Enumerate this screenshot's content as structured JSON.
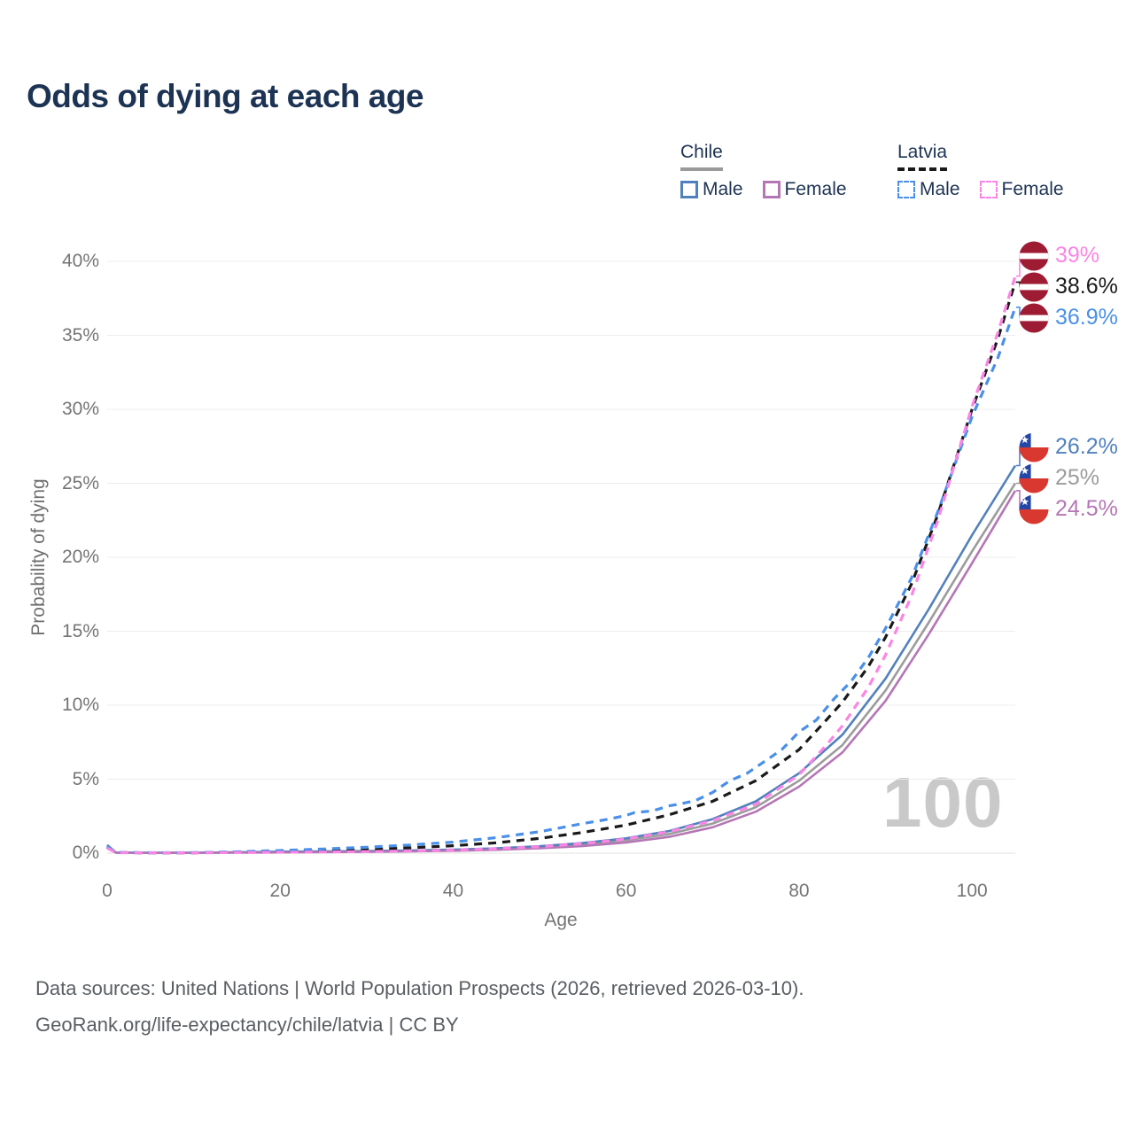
{
  "header": {
    "title": "Odds of dying at each age"
  },
  "legend": {
    "groups": [
      {
        "title": "Chile",
        "underline": "solid",
        "items": [
          {
            "label": "Male",
            "color": "#5181bc",
            "dash": false
          },
          {
            "label": "Female",
            "color": "#b576b6",
            "dash": false
          }
        ]
      },
      {
        "title": "Latvia",
        "underline": "dashed",
        "items": [
          {
            "label": "Male",
            "color": "#4a90e8",
            "dash": true
          },
          {
            "label": "Female",
            "color": "#fb85e4",
            "dash": true
          }
        ]
      }
    ]
  },
  "chart_data": {
    "type": "line",
    "title": "Odds of dying at each age",
    "xlabel": "Age",
    "ylabel": "Probability of dying",
    "xlim": [
      0,
      105
    ],
    "ylim": [
      0,
      40
    ],
    "x_ticks": [
      0,
      20,
      40,
      60,
      80,
      100
    ],
    "x_tick_labels": [
      "0",
      "20",
      "40",
      "60",
      "80",
      "100"
    ],
    "y_ticks": [
      0,
      5,
      10,
      15,
      20,
      25,
      30,
      35,
      40
    ],
    "y_tick_labels": [
      "0%",
      "5%",
      "10%",
      "15%",
      "20%",
      "25%",
      "30%",
      "35%",
      "40%"
    ],
    "grid": "horizontal",
    "legend_position": "top-right",
    "watermark": "100",
    "series": [
      {
        "id": "chile-total",
        "name": "Chile Total",
        "country": "Chile",
        "sex": "Total",
        "color": "#9c9c9c",
        "dash": false,
        "end_label": "25%",
        "points": [
          [
            0,
            0.5
          ],
          [
            1,
            0.035
          ],
          [
            5,
            0.02
          ],
          [
            10,
            0.02
          ],
          [
            15,
            0.05
          ],
          [
            20,
            0.08
          ],
          [
            25,
            0.1
          ],
          [
            30,
            0.12
          ],
          [
            35,
            0.15
          ],
          [
            40,
            0.2
          ],
          [
            45,
            0.28
          ],
          [
            50,
            0.4
          ],
          [
            55,
            0.58
          ],
          [
            60,
            0.87
          ],
          [
            65,
            1.3
          ],
          [
            70,
            2.0
          ],
          [
            75,
            3.1
          ],
          [
            80,
            4.9
          ],
          [
            85,
            7.3
          ],
          [
            90,
            11.0
          ],
          [
            95,
            15.6
          ],
          [
            100,
            20.4
          ],
          [
            105,
            25.0
          ]
        ]
      },
      {
        "id": "chile-male",
        "name": "Chile Male",
        "country": "Chile",
        "sex": "Male",
        "color": "#5181bc",
        "dash": false,
        "end_label": "26.2%",
        "points": [
          [
            0,
            0.55
          ],
          [
            1,
            0.04
          ],
          [
            5,
            0.025
          ],
          [
            10,
            0.025
          ],
          [
            15,
            0.06
          ],
          [
            20,
            0.1
          ],
          [
            25,
            0.12
          ],
          [
            30,
            0.14
          ],
          [
            35,
            0.18
          ],
          [
            40,
            0.24
          ],
          [
            45,
            0.33
          ],
          [
            50,
            0.47
          ],
          [
            55,
            0.68
          ],
          [
            60,
            1.0
          ],
          [
            65,
            1.5
          ],
          [
            70,
            2.3
          ],
          [
            75,
            3.5
          ],
          [
            80,
            5.4
          ],
          [
            85,
            8.0
          ],
          [
            90,
            11.8
          ],
          [
            95,
            16.5
          ],
          [
            100,
            21.5
          ],
          [
            105,
            26.2
          ]
        ]
      },
      {
        "id": "chile-female",
        "name": "Chile Female",
        "country": "Chile",
        "sex": "Female",
        "color": "#b576b6",
        "dash": false,
        "end_label": "24.5%",
        "points": [
          [
            0,
            0.45
          ],
          [
            1,
            0.03
          ],
          [
            5,
            0.015
          ],
          [
            10,
            0.015
          ],
          [
            15,
            0.035
          ],
          [
            20,
            0.05
          ],
          [
            25,
            0.07
          ],
          [
            30,
            0.09
          ],
          [
            35,
            0.12
          ],
          [
            40,
            0.16
          ],
          [
            45,
            0.23
          ],
          [
            50,
            0.33
          ],
          [
            55,
            0.48
          ],
          [
            60,
            0.72
          ],
          [
            65,
            1.1
          ],
          [
            70,
            1.75
          ],
          [
            75,
            2.8
          ],
          [
            80,
            4.5
          ],
          [
            85,
            6.8
          ],
          [
            90,
            10.3
          ],
          [
            95,
            14.8
          ],
          [
            100,
            19.6
          ],
          [
            105,
            24.5
          ]
        ]
      },
      {
        "id": "latvia-total",
        "name": "Latvia Total",
        "country": "Latvia",
        "sex": "Total",
        "color": "#1a1a1a",
        "dash": true,
        "end_label": "38.6%",
        "points": [
          [
            0,
            0.4
          ],
          [
            1,
            0.04
          ],
          [
            5,
            0.02
          ],
          [
            10,
            0.025
          ],
          [
            15,
            0.07
          ],
          [
            20,
            0.12
          ],
          [
            25,
            0.18
          ],
          [
            30,
            0.26
          ],
          [
            35,
            0.36
          ],
          [
            40,
            0.5
          ],
          [
            45,
            0.7
          ],
          [
            50,
            1.0
          ],
          [
            55,
            1.4
          ],
          [
            60,
            1.9
          ],
          [
            65,
            2.6
          ],
          [
            70,
            3.5
          ],
          [
            75,
            4.9
          ],
          [
            80,
            7.0
          ],
          [
            83,
            8.9
          ],
          [
            85,
            10.2
          ],
          [
            88,
            12.6
          ],
          [
            90,
            14.6
          ],
          [
            93,
            18.2
          ],
          [
            96,
            22.8
          ],
          [
            100,
            30.0
          ],
          [
            103,
            34.8
          ],
          [
            105,
            38.6
          ]
        ]
      },
      {
        "id": "latvia-male",
        "name": "Latvia Male",
        "country": "Latvia",
        "sex": "Male",
        "color": "#4a90e8",
        "dash": true,
        "end_label": "36.9%",
        "points": [
          [
            0,
            0.45
          ],
          [
            1,
            0.05
          ],
          [
            5,
            0.03
          ],
          [
            10,
            0.035
          ],
          [
            15,
            0.09
          ],
          [
            20,
            0.18
          ],
          [
            25,
            0.28
          ],
          [
            30,
            0.4
          ],
          [
            35,
            0.55
          ],
          [
            40,
            0.75
          ],
          [
            45,
            1.05
          ],
          [
            50,
            1.45
          ],
          [
            55,
            2.0
          ],
          [
            58,
            2.3
          ],
          [
            60,
            2.55
          ],
          [
            61,
            2.75
          ],
          [
            63,
            2.85
          ],
          [
            65,
            3.2
          ],
          [
            66,
            3.3
          ],
          [
            68,
            3.55
          ],
          [
            70,
            4.1
          ],
          [
            72,
            4.9
          ],
          [
            74,
            5.4
          ],
          [
            76,
            6.2
          ],
          [
            78,
            7.0
          ],
          [
            80,
            8.2
          ],
          [
            82,
            9.0
          ],
          [
            84,
            10.4
          ],
          [
            86,
            11.6
          ],
          [
            88,
            13.2
          ],
          [
            90,
            15.2
          ],
          [
            93,
            18.6
          ],
          [
            96,
            23.0
          ],
          [
            100,
            29.5
          ],
          [
            103,
            33.5
          ],
          [
            105,
            36.9
          ]
        ]
      },
      {
        "id": "latvia-female",
        "name": "Latvia Female",
        "country": "Latvia",
        "sex": "Female",
        "color": "#fb85e4",
        "dash": true,
        "end_label": "39%",
        "points": [
          [
            0,
            0.35
          ],
          [
            1,
            0.03
          ],
          [
            5,
            0.015
          ],
          [
            10,
            0.015
          ],
          [
            15,
            0.04
          ],
          [
            20,
            0.06
          ],
          [
            25,
            0.08
          ],
          [
            30,
            0.11
          ],
          [
            35,
            0.15
          ],
          [
            40,
            0.21
          ],
          [
            45,
            0.3
          ],
          [
            50,
            0.44
          ],
          [
            55,
            0.64
          ],
          [
            60,
            0.95
          ],
          [
            65,
            1.45
          ],
          [
            70,
            2.2
          ],
          [
            75,
            3.3
          ],
          [
            80,
            5.3
          ],
          [
            83,
            7.2
          ],
          [
            85,
            8.6
          ],
          [
            88,
            11.2
          ],
          [
            90,
            13.4
          ],
          [
            93,
            17.4
          ],
          [
            96,
            22.4
          ],
          [
            100,
            30.2
          ],
          [
            103,
            35.2
          ],
          [
            105,
            39.0
          ]
        ]
      }
    ],
    "end_labels": [
      {
        "flag": "latvia",
        "rows": [
          {
            "series": "latvia-female",
            "text": "39%"
          },
          {
            "series": "latvia-total",
            "text": "38.6%"
          },
          {
            "series": "latvia-male",
            "text": "36.9%"
          }
        ]
      },
      {
        "flag": "chile",
        "rows": [
          {
            "series": "chile-male",
            "text": "26.2%"
          },
          {
            "series": "chile-total",
            "text": "25%"
          },
          {
            "series": "chile-female",
            "text": "24.5%"
          }
        ]
      }
    ],
    "flag_colors": {
      "chile": {
        "blue": "#2448a8",
        "red": "#d93831",
        "white": "#ffffff"
      },
      "latvia": {
        "maroon": "#9e1b34",
        "white": "#ffffff"
      }
    }
  },
  "source": {
    "line1": "Data sources: United Nations | World Population Prospects (2026, retrieved 2026-03-10).",
    "line2": "GeoRank.org/life-expectancy/chile/latvia | CC BY"
  }
}
